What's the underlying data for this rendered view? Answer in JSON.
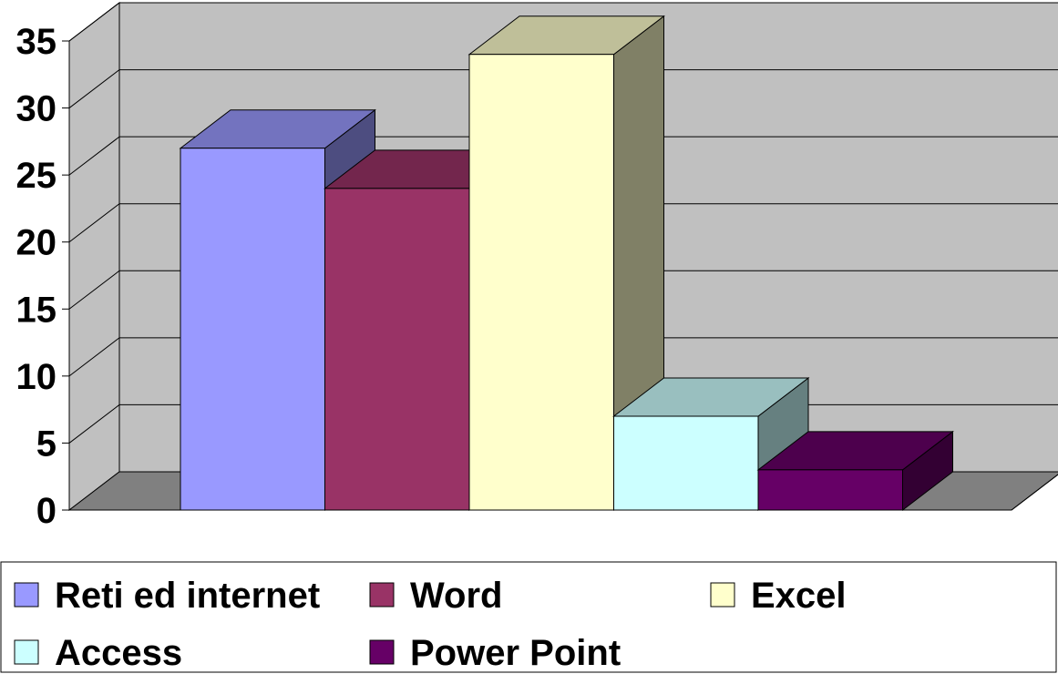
{
  "chart_data": {
    "type": "bar",
    "categories": [
      "Reti ed internet",
      "Word",
      "Excel",
      "Access",
      "Power Point"
    ],
    "values": [
      27,
      24,
      34,
      7,
      3
    ],
    "ylim": [
      0,
      35
    ],
    "yticks": [
      0,
      5,
      10,
      15,
      20,
      25,
      30,
      35
    ],
    "grid": true,
    "legend": "bottom",
    "colors": {
      "series": [
        "#9999ff",
        "#993366",
        "#ffffcc",
        "#ccffff",
        "#660066"
      ],
      "wall": "#c0c0c0",
      "floor": "#808080"
    }
  }
}
